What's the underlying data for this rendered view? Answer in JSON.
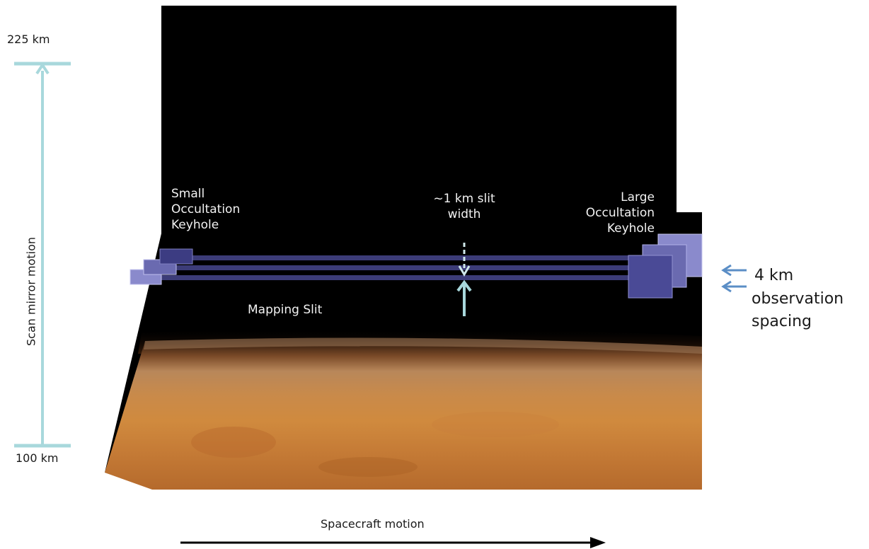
{
  "altitude_scale": {
    "top_label": "225 km",
    "bottom_label": "100 km",
    "axis_label": "Scan mirror motion"
  },
  "labels": {
    "small_keyhole": "Small\nOccultation\nKeyhole",
    "large_keyhole": "Large\nOccultation\nKeyhole",
    "slit_width": "~1 km slit\nwidth",
    "mapping_slit": "Mapping Slit",
    "observation_spacing_line1": "4 km",
    "observation_spacing_line2": "observation\nspacing",
    "spacecraft_motion": "Spacecraft motion"
  },
  "colors": {
    "space": "#000000",
    "mars_surface": "#c77a38",
    "slit": "#3c3c78",
    "keyhole": "#5a5aa0",
    "scale_bar": "#a8d8dc",
    "spacing_arrow": "#5b8ec6",
    "motion_arrow": "#000000"
  }
}
